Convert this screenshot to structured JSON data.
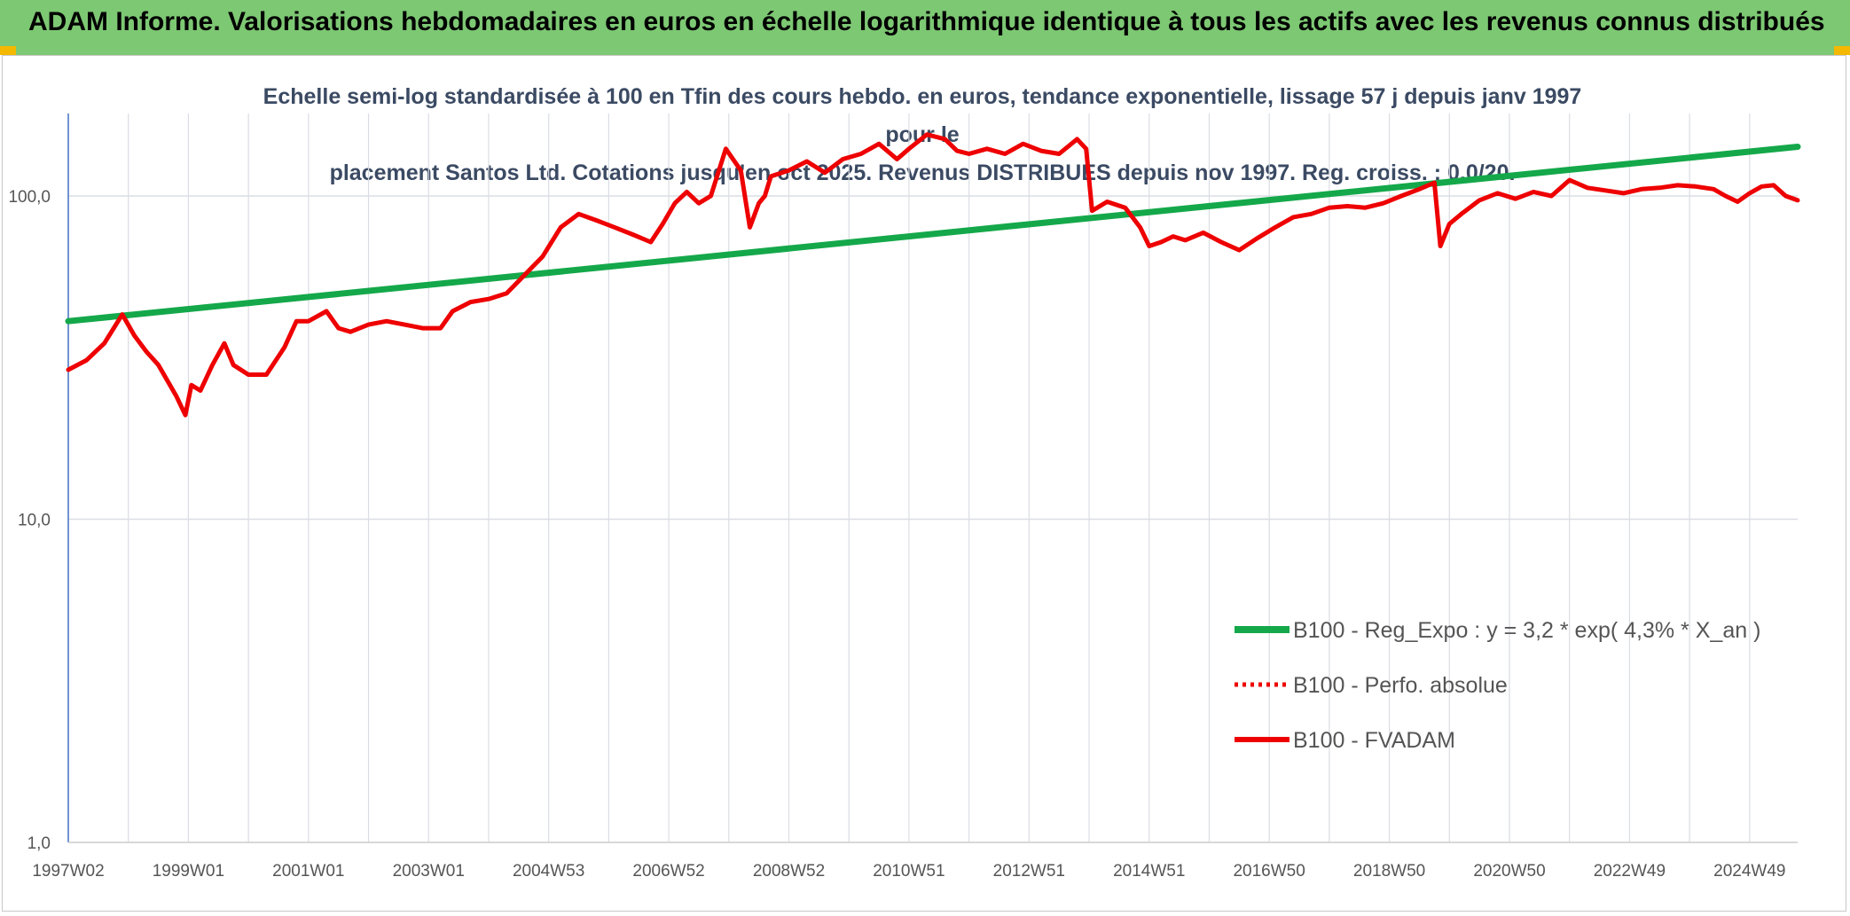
{
  "header": {
    "title": "ADAM Informe. Valorisations hebdomadaires en euros en échelle logarithmique identique à tous les actifs avec les revenus connus distribués"
  },
  "colors": {
    "header_bg": "#7dc873",
    "trend": "#14a84a",
    "series": "#ee0000",
    "accent": "#f5b800"
  },
  "chart_data": {
    "type": "line",
    "title": "Echelle semi-log standardisée à 100 en Tfin des cours hebdo. en euros, tendance exponentielle, lissage 57 j depuis janv 1997 pour le placement Santos Ltd. Cotations jusqu'en oct 2025. Revenus DISTRIBUES depuis nov 1997. Reg. croiss. : 0,0/20.",
    "title_lines": [
      "Echelle semi-log standardisée à 100 en Tfin des cours hebdo. en euros, tendance exponentielle, lissage 57 j depuis janv 1997 pour le",
      "placement Santos Ltd. Cotations jusqu'en oct 2025. Revenus DISTRIBUES depuis nov 1997. Reg. croiss. : 0,0/20."
    ],
    "y_scale": "log",
    "ylim": [
      1,
      180
    ],
    "y_ticks": [
      1,
      10,
      100
    ],
    "y_tick_labels": [
      "1,0",
      "10,0",
      "100,0"
    ],
    "x_range": [
      1997.0,
      2025.8
    ],
    "x_ticks": [
      1997.0,
      1999.0,
      2001.0,
      2003.0,
      2005.0,
      2007.0,
      2009.0,
      2011.0,
      2013.0,
      2015.0,
      2017.0,
      2019.0,
      2021.0,
      2023.0,
      2025.0
    ],
    "x_tick_labels": [
      "1997W02",
      "1999W01",
      "2001W01",
      "2003W01",
      "2004W53",
      "2006W52",
      "2008W52",
      "2010W51",
      "2012W51",
      "2014W51",
      "2016W50",
      "2018W50",
      "2020W50",
      "2022W49",
      "2024W49"
    ],
    "grid": true,
    "legend_position": "bottom-right",
    "series": [
      {
        "name": "B100 - Reg_Expo : y = 3,2 * exp( 4,3% *  X_an )",
        "style": "solid-green",
        "x": [
          1997.0,
          2025.8
        ],
        "y": [
          41,
          142
        ]
      },
      {
        "name": "B100 - Perfo. absolue",
        "style": "dotted-red",
        "x": [],
        "y": []
      },
      {
        "name": "B100 - FVADAM",
        "style": "solid-red",
        "x": [
          1997.0,
          1997.3,
          1997.6,
          1997.9,
          1998.1,
          1998.3,
          1998.5,
          1998.8,
          1998.95,
          1999.05,
          1999.2,
          1999.4,
          1999.6,
          1999.75,
          2000.0,
          2000.3,
          2000.6,
          2000.8,
          2001.0,
          2001.3,
          2001.5,
          2001.7,
          2002.0,
          2002.3,
          2002.6,
          2002.9,
          2003.2,
          2003.4,
          2003.7,
          2004.0,
          2004.3,
          2004.6,
          2004.9,
          2005.2,
          2005.5,
          2005.8,
          2006.1,
          2006.4,
          2006.7,
          2006.9,
          2007.1,
          2007.3,
          2007.5,
          2007.7,
          2007.95,
          2008.2,
          2008.35,
          2008.5,
          2008.6,
          2008.7,
          2009.0,
          2009.3,
          2009.6,
          2009.9,
          2010.2,
          2010.5,
          2010.8,
          2011.0,
          2011.3,
          2011.6,
          2011.8,
          2012.0,
          2012.3,
          2012.6,
          2012.9,
          2013.2,
          2013.5,
          2013.8,
          2013.95,
          2014.05,
          2014.3,
          2014.6,
          2014.85,
          2015.0,
          2015.2,
          2015.4,
          2015.6,
          2015.9,
          2016.2,
          2016.5,
          2016.8,
          2017.1,
          2017.4,
          2017.7,
          2018.0,
          2018.3,
          2018.6,
          2018.9,
          2019.2,
          2019.5,
          2019.75,
          2019.85,
          2020.0,
          2020.2,
          2020.5,
          2020.8,
          2021.1,
          2021.4,
          2021.7,
          2022.0,
          2022.3,
          2022.6,
          2022.9,
          2023.2,
          2023.5,
          2023.8,
          2024.1,
          2024.4,
          2024.6,
          2024.8,
          2025.0,
          2025.2,
          2025.4,
          2025.6,
          2025.8
        ],
        "y": [
          29,
          31,
          35,
          43,
          37,
          33,
          30,
          24,
          21,
          26,
          25,
          30,
          35,
          30,
          28,
          28,
          34,
          41,
          41,
          44,
          39,
          38,
          40,
          41,
          40,
          39,
          39,
          44,
          47,
          48,
          50,
          57,
          65,
          80,
          88,
          84,
          80,
          76,
          72,
          82,
          95,
          103,
          95,
          100,
          140,
          120,
          80,
          95,
          100,
          115,
          120,
          128,
          118,
          130,
          135,
          145,
          130,
          140,
          155,
          150,
          138,
          135,
          140,
          135,
          145,
          138,
          135,
          150,
          140,
          90,
          96,
          92,
          80,
          70,
          72,
          75,
          73,
          77,
          72,
          68,
          74,
          80,
          86,
          88,
          92,
          93,
          92,
          95,
          100,
          105,
          110,
          70,
          82,
          88,
          97,
          102,
          98,
          103,
          100,
          112,
          106,
          104,
          102,
          105,
          106,
          108,
          107,
          105,
          100,
          96,
          102,
          107,
          108,
          100,
          97
        ]
      }
    ]
  }
}
